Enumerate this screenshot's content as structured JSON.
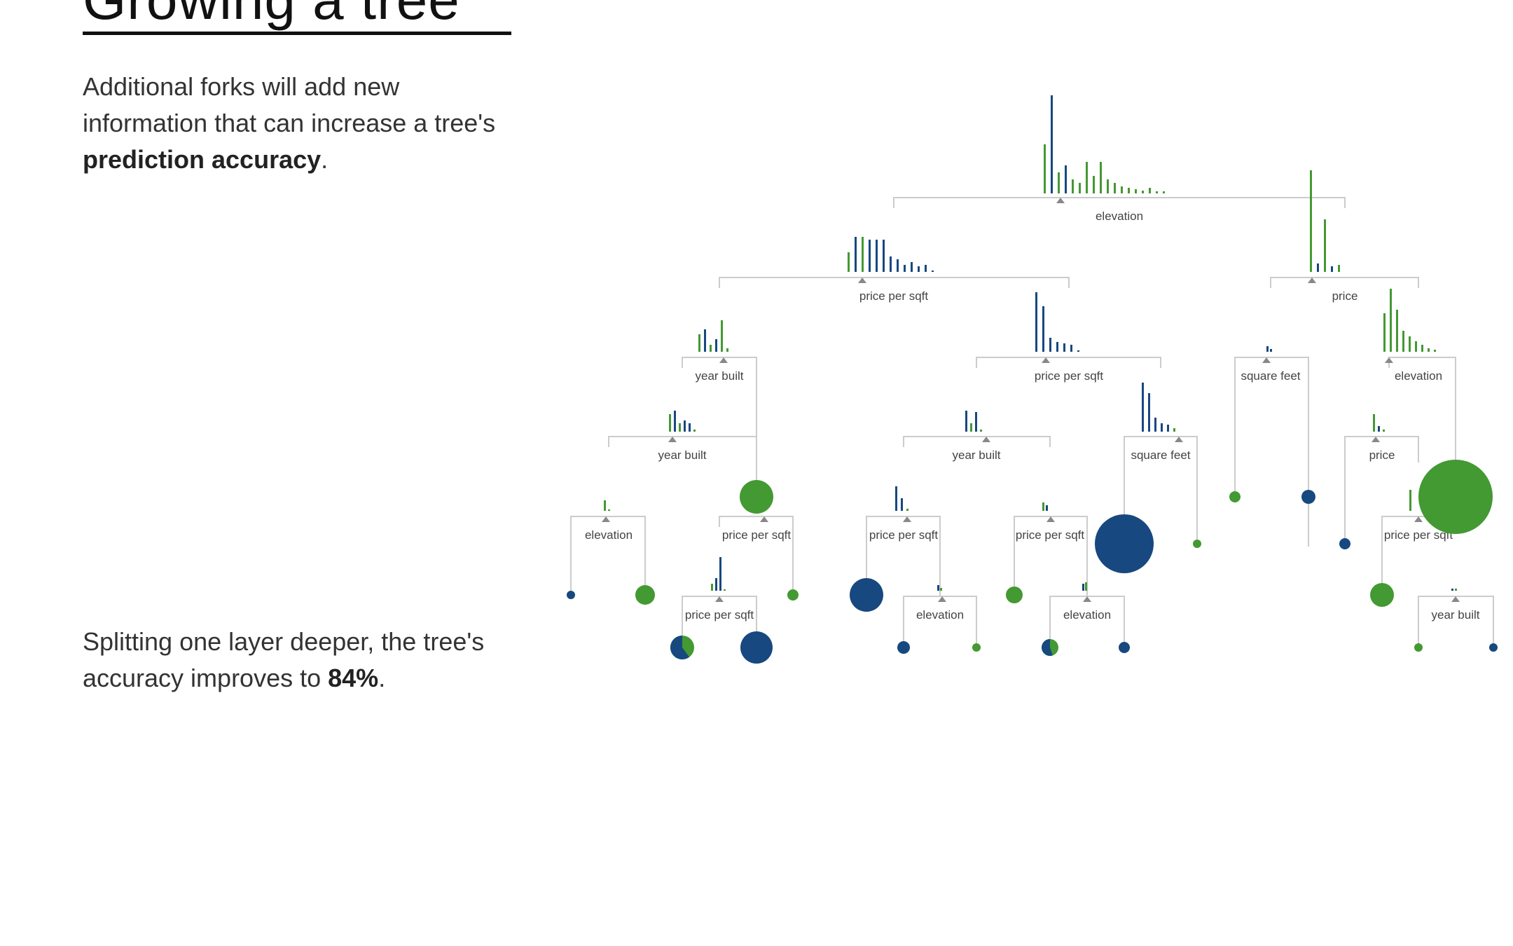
{
  "header": {
    "title": "Growing a tree"
  },
  "text1": {
    "pre": "Additional forks will add new information that can increase a tree's ",
    "bold": "prediction accuracy",
    "post": "."
  },
  "text2": {
    "pre": "Splitting one layer deeper, the tree's accuracy improves to ",
    "bold": "84%",
    "post": "."
  },
  "colors": {
    "ny": "#17487f",
    "sf": "#439932",
    "line": "#cccccc",
    "label": "#444444",
    "triangle": "#888888"
  },
  "tree": {
    "split_labels": [
      "elevation",
      "price per sqft",
      "price",
      "year built",
      "price per sqft",
      "square feet",
      "elevation",
      "year built",
      "year built",
      "square feet",
      "price",
      "elevation",
      "price per sqft",
      "price per sqft",
      "price per sqft",
      "price per sqft",
      "price per sqft",
      "elevation",
      "elevation",
      "year built"
    ]
  }
}
